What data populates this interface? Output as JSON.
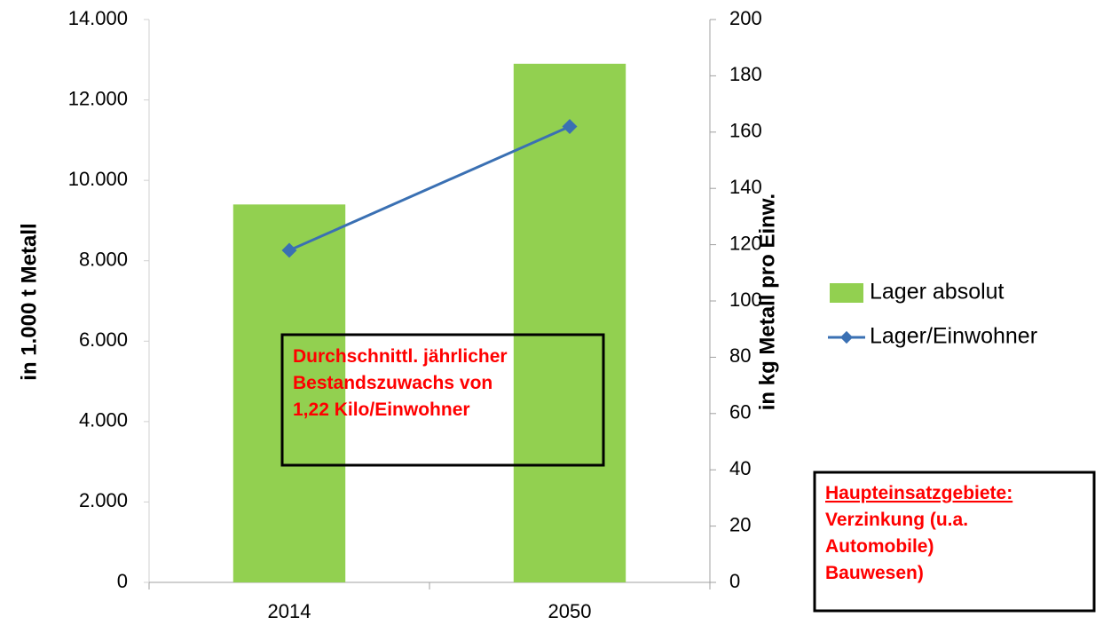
{
  "chart_data": {
    "type": "bar_line",
    "categories": [
      "2014",
      "2050"
    ],
    "series": [
      {
        "name": "Lager absolut",
        "type": "bar",
        "color": "#92d050",
        "values": [
          9400,
          12900
        ]
      },
      {
        "name": "Lager/Einwohner",
        "type": "line",
        "axis": "y2",
        "color": "#3a70b3",
        "values": [
          118,
          162
        ]
      }
    ],
    "ylabel": "in 1.000 t Metall",
    "y2label": "in kg Metall pro Einw.",
    "ylim": [
      0,
      14000
    ],
    "yticks": [
      0,
      {
        "value": 2000,
        "label": "2.000"
      },
      {
        "value": 4000,
        "label": "4.000"
      },
      {
        "value": 6000,
        "label": "6.000"
      },
      {
        "value": 8000,
        "label": "8.000"
      },
      {
        "value": 10000,
        "label": "10.000"
      },
      {
        "value": 12000,
        "label": "12.000"
      },
      {
        "value": 14000,
        "label": "14.000"
      }
    ],
    "y2lim": [
      0,
      200
    ],
    "y2ticks": [
      0,
      20,
      40,
      60,
      80,
      100,
      120,
      140,
      160,
      180,
      200
    ],
    "grid": false,
    "legend": "right",
    "annotations": [
      {
        "lines": [
          "Durchschnittl. jährlicher",
          "Bestandszuwachs von",
          "1,22 Kilo/Einwohner"
        ]
      },
      {
        "lines": [
          "Haupteinsatzgebiete:",
          "Verzinkung (u.a.",
          "Automobile)",
          "Bauwesen)"
        ]
      }
    ]
  }
}
